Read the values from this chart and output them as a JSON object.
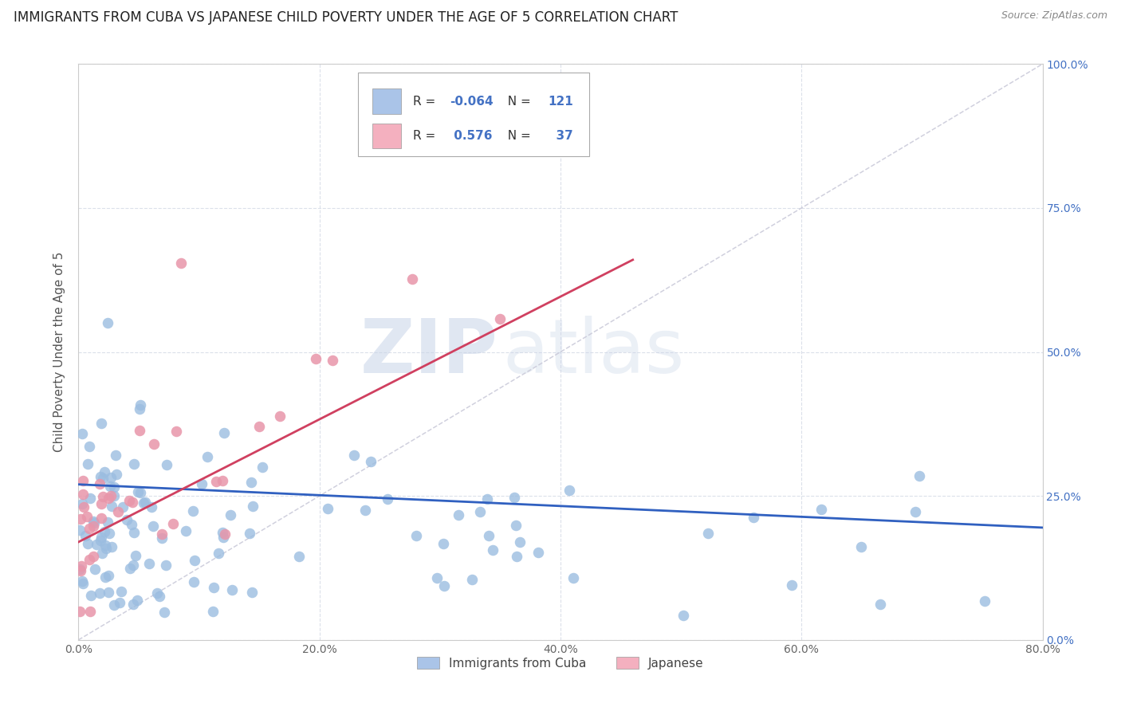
{
  "title": "IMMIGRANTS FROM CUBA VS JAPANESE CHILD POVERTY UNDER THE AGE OF 5 CORRELATION CHART",
  "source": "Source: ZipAtlas.com",
  "ylabel": "Child Poverty Under the Age of 5",
  "x_min": 0.0,
  "x_max": 0.8,
  "y_min": 0.0,
  "y_max": 1.0,
  "x_ticks": [
    0.0,
    0.2,
    0.4,
    0.6,
    0.8
  ],
  "x_tick_labels": [
    "0.0%",
    "20.0%",
    "40.0%",
    "60.0%",
    "80.0%"
  ],
  "y_ticks": [
    0.0,
    0.25,
    0.5,
    0.75,
    1.0
  ],
  "y_tick_labels_right": [
    "0.0%",
    "25.0%",
    "50.0%",
    "75.0%",
    "100.0%"
  ],
  "legend_items": [
    {
      "label": "Immigrants from Cuba",
      "color": "#aac4e8",
      "R": "-0.064",
      "N": "121"
    },
    {
      "label": "Japanese",
      "color": "#f4b0bf",
      "R": "0.576",
      "N": "37"
    }
  ],
  "cuba_scatter_color": "#9bbde0",
  "japan_scatter_color": "#e896aa",
  "cuba_line_color": "#3060c0",
  "japan_line_color": "#d04060",
  "cuba_R": -0.064,
  "cuba_N": 121,
  "japan_R": 0.576,
  "japan_N": 37,
  "watermark_zip": "ZIP",
  "watermark_atlas": "atlas",
  "background_color": "#ffffff",
  "grid_color": "#d8dde8",
  "title_fontsize": 12,
  "axis_label_fontsize": 11,
  "tick_fontsize": 10,
  "right_tick_color": "#4472c4",
  "diagonal_color": "#c8c8d8",
  "cuba_line_start_x": 0.0,
  "cuba_line_end_x": 0.8,
  "cuba_line_start_y": 0.27,
  "cuba_line_end_y": 0.195,
  "japan_line_start_x": 0.0,
  "japan_line_end_x": 0.46,
  "japan_line_start_y": 0.17,
  "japan_line_end_y": 0.66
}
